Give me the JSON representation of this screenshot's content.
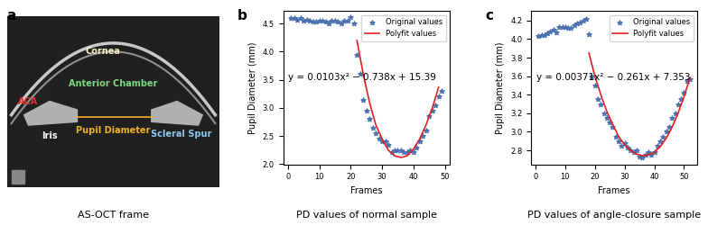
{
  "image_panel": {
    "letter": "a",
    "caption": "AS-OCT frame",
    "labels": [
      {
        "text": "Cornea",
        "color": "#f5f0c8"
      },
      {
        "text": "Anterior Chamber",
        "color": "#7fd67f"
      },
      {
        "text": "ACA",
        "color": "#e03030"
      },
      {
        "text": "Iris",
        "color": "#ffffff"
      },
      {
        "text": "Pupil Diameter",
        "color": "#f0b030"
      },
      {
        "text": "Scleral Spur",
        "color": "#8ec8f0"
      }
    ]
  },
  "chart_data": [
    {
      "type": "scatter",
      "letter": "b",
      "caption": "PD values of normal sample",
      "x_label": "Frames",
      "y_label": "Pupil Diameter (mm)",
      "annotation": "y = 0.0103x² − 0.738x + 15.39",
      "xlim": [
        -1.5,
        51.5
      ],
      "xticks": [
        0,
        10,
        20,
        30,
        40,
        50
      ],
      "ylim": [
        2.0,
        4.72
      ],
      "yticks": [
        2.0,
        2.5,
        3.0,
        3.5,
        4.0,
        4.5
      ],
      "legend": "upper right",
      "series": [
        {
          "name": "Original values",
          "type": "scatter",
          "marker": "star",
          "color": "#4c72b0",
          "x": [
            1,
            2,
            3,
            4,
            5,
            6,
            7,
            8,
            9,
            10,
            11,
            12,
            13,
            14,
            15,
            16,
            17,
            18,
            19,
            20,
            21,
            22,
            23,
            24,
            25,
            26,
            27,
            28,
            29,
            30,
            31,
            32,
            33,
            34,
            35,
            36,
            37,
            38,
            39,
            40,
            41,
            42,
            43,
            44,
            45,
            46,
            47,
            48,
            49
          ],
          "values": [
            4.6,
            4.6,
            4.57,
            4.6,
            4.55,
            4.57,
            4.55,
            4.53,
            4.53,
            4.55,
            4.55,
            4.53,
            4.5,
            4.55,
            4.55,
            4.53,
            4.5,
            4.55,
            4.55,
            4.62,
            4.5,
            3.95,
            3.6,
            3.15,
            2.95,
            2.8,
            2.65,
            2.55,
            2.45,
            2.4,
            2.4,
            2.35,
            2.22,
            2.25,
            2.25,
            2.25,
            2.22,
            2.22,
            2.25,
            2.22,
            2.3,
            2.4,
            2.5,
            2.6,
            2.85,
            2.95,
            3.05,
            3.2,
            3.3
          ]
        },
        {
          "name": "Polyfit values",
          "type": "line",
          "color": "#e02020",
          "x": [
            22,
            24,
            26,
            28,
            30,
            32,
            34,
            36,
            38,
            40,
            42,
            44,
            46,
            48
          ],
          "values": [
            4.2,
            3.6,
            3.1,
            2.7,
            2.45,
            2.25,
            2.15,
            2.12,
            2.15,
            2.27,
            2.45,
            2.7,
            3.0,
            3.37
          ]
        }
      ]
    },
    {
      "type": "scatter",
      "letter": "c",
      "caption": "PD values of angle-closure sample",
      "x_label": "Frames",
      "y_label": "Pupil Diameter (mm)",
      "annotation": "y = 0.00371x² − 0.261x + 7.353",
      "xlim": [
        -1.5,
        54.5
      ],
      "xticks": [
        0,
        10,
        20,
        30,
        40,
        50
      ],
      "ylim": [
        2.65,
        4.3
      ],
      "yticks": [
        2.8,
        3.0,
        3.2,
        3.4,
        3.6,
        3.8,
        4.0,
        4.2
      ],
      "legend": "upper right",
      "series": [
        {
          "name": "Original values",
          "type": "scatter",
          "marker": "star",
          "color": "#4c72b0",
          "x": [
            1,
            2,
            3,
            4,
            5,
            6,
            7,
            8,
            9,
            10,
            11,
            12,
            13,
            14,
            15,
            16,
            17,
            18,
            19,
            20,
            21,
            22,
            23,
            24,
            25,
            26,
            27,
            28,
            29,
            30,
            31,
            32,
            33,
            34,
            35,
            36,
            37,
            38,
            39,
            40,
            41,
            42,
            43,
            44,
            45,
            46,
            47,
            48,
            49,
            50,
            51,
            52
          ],
          "values": [
            4.03,
            4.04,
            4.04,
            4.06,
            4.08,
            4.1,
            4.07,
            4.13,
            4.13,
            4.13,
            4.12,
            4.12,
            4.15,
            4.17,
            4.18,
            4.2,
            4.22,
            4.05,
            3.6,
            3.5,
            3.35,
            3.3,
            3.2,
            3.15,
            3.1,
            3.05,
            2.95,
            2.9,
            2.85,
            2.88,
            2.83,
            2.8,
            2.78,
            2.8,
            2.73,
            2.72,
            2.75,
            2.78,
            2.75,
            2.78,
            2.85,
            2.9,
            2.95,
            3.0,
            3.05,
            3.15,
            3.2,
            3.3,
            3.35,
            3.42,
            3.55,
            3.57
          ]
        },
        {
          "name": "Polyfit values",
          "type": "line",
          "color": "#e02020",
          "x": [
            18,
            20,
            22,
            24,
            26,
            28,
            30,
            32,
            34,
            36,
            38,
            40,
            42,
            44,
            46,
            48,
            50,
            52
          ],
          "values": [
            3.85,
            3.6,
            3.4,
            3.22,
            3.08,
            2.95,
            2.86,
            2.8,
            2.76,
            2.74,
            2.75,
            2.78,
            2.84,
            2.93,
            3.05,
            3.2,
            3.38,
            3.58
          ]
        }
      ]
    }
  ]
}
